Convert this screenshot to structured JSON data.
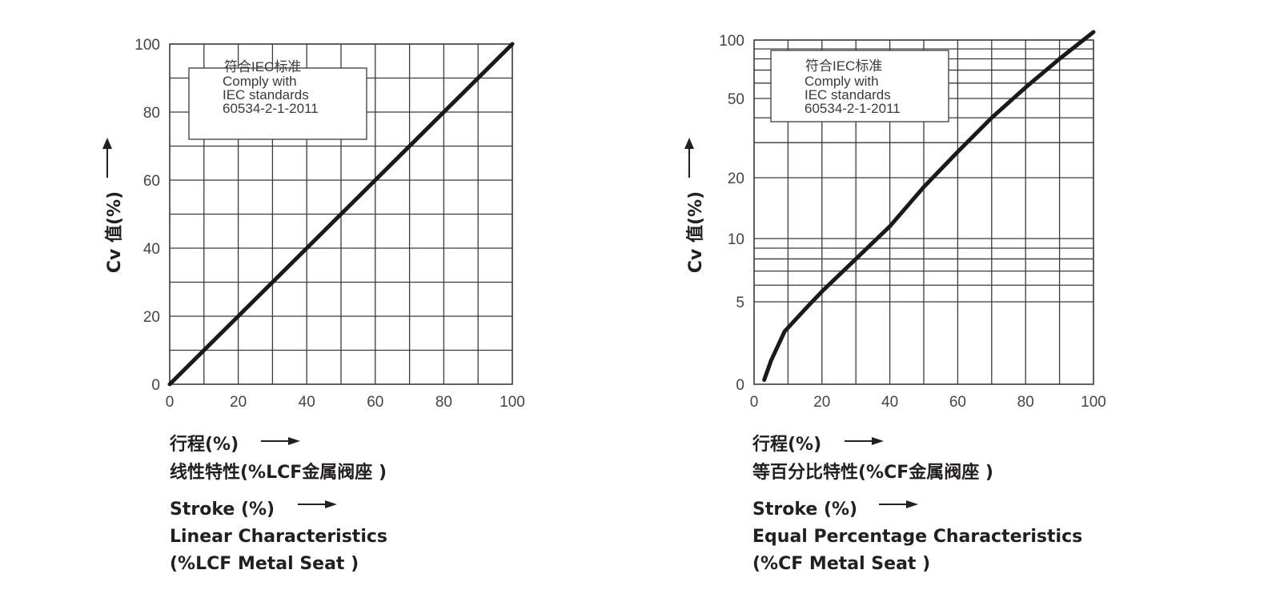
{
  "chart_data": [
    {
      "type": "line",
      "ylabel": "Cv 值(%)",
      "xlim": [
        0,
        100
      ],
      "ylim": [
        0,
        100
      ],
      "yscale": "linear",
      "grid": true,
      "xticks": [
        "0",
        "20",
        "40",
        "60",
        "80",
        "100"
      ],
      "yticks": [
        "0",
        "20",
        "40",
        "60",
        "80",
        "100"
      ],
      "note": [
        "符合IEC标准",
        "Comply with",
        "IEC standards",
        "60534-2-1-2011"
      ],
      "caption": [
        "行程(%)",
        "线性特性(%LCF金属阀座 )",
        "Stroke (%)",
        "Linear Characteristics",
        "(%LCF Metal Seat )"
      ],
      "series": [
        {
          "x": [
            0,
            20,
            40,
            60,
            80,
            100
          ],
          "y": [
            0,
            20,
            40,
            60,
            80,
            100
          ]
        }
      ],
      "line_color": "#1a1a1a",
      "grid_color": "#3a3a3a"
    },
    {
      "type": "line",
      "ylabel": "Cv 值(%)",
      "xlim": [
        0,
        100
      ],
      "ylim": [
        0,
        100
      ],
      "yscale": "log",
      "grid": true,
      "xticks": [
        "0",
        "20",
        "40",
        "60",
        "80",
        "100"
      ],
      "yticks": [
        "0",
        "5",
        "10",
        "20",
        "50",
        "100"
      ],
      "note": [
        "符合IEC标准",
        "Comply with",
        "IEC standards",
        "60534-2-1-2011"
      ],
      "caption": [
        "行程(%)",
        "等百分比特性(%CF金属阀座 )",
        "Stroke (%)",
        "Equal Percentage Characteristics",
        "(%CF Metal Seat )"
      ],
      "series": [
        {
          "x": [
            3,
            5,
            9,
            15,
            20,
            30,
            40,
            50,
            60,
            70,
            80,
            90,
            100
          ],
          "y": [
            2.1,
            2.6,
            3.6,
            4.6,
            5.6,
            8,
            11.5,
            18,
            27,
            40,
            57,
            80,
            110
          ]
        }
      ],
      "line_color": "#1a1a1a",
      "grid_color": "#3a3a3a"
    }
  ]
}
